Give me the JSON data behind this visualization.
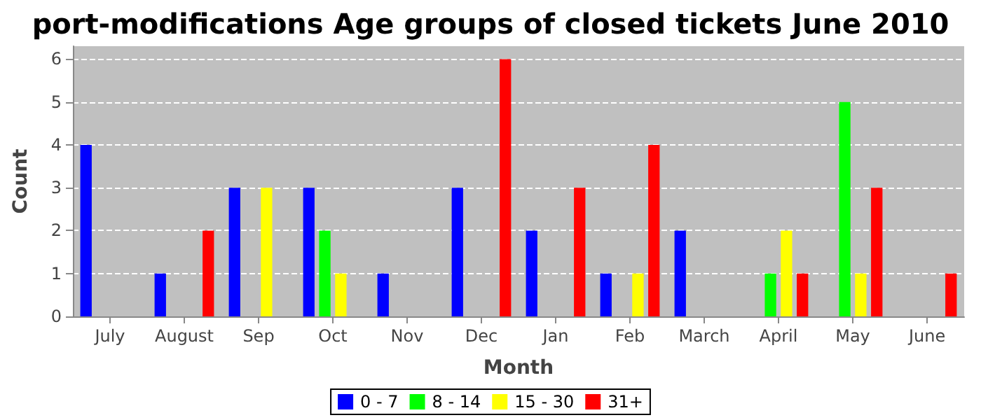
{
  "chart_data": {
    "type": "bar",
    "title": "port-modifications Age groups of closed tickets June 2010",
    "xlabel": "Month",
    "ylabel": "Count",
    "categories": [
      "July",
      "August",
      "Sep",
      "Oct",
      "Nov",
      "Dec",
      "Jan",
      "Feb",
      "March",
      "April",
      "May",
      "June"
    ],
    "series": [
      {
        "name": "0 - 7",
        "color": "#0000ff",
        "values": [
          4,
          1,
          3,
          3,
          1,
          3,
          2,
          1,
          2,
          0,
          0,
          0
        ]
      },
      {
        "name": "8 - 14",
        "color": "#00ff00",
        "values": [
          0,
          0,
          0,
          2,
          0,
          0,
          0,
          0,
          0,
          1,
          5,
          0
        ]
      },
      {
        "name": "15 - 30",
        "color": "#ffff00",
        "values": [
          0,
          0,
          3,
          1,
          0,
          0,
          0,
          1,
          0,
          2,
          1,
          0
        ]
      },
      {
        "name": "31+",
        "color": "#ff0000",
        "values": [
          0,
          2,
          0,
          0,
          0,
          6,
          3,
          4,
          0,
          1,
          3,
          1
        ]
      }
    ],
    "ylim": [
      0,
      6.3
    ],
    "yticks": [
      0,
      1,
      2,
      3,
      4,
      5,
      6
    ],
    "grid": "y",
    "legend": "bottom"
  }
}
